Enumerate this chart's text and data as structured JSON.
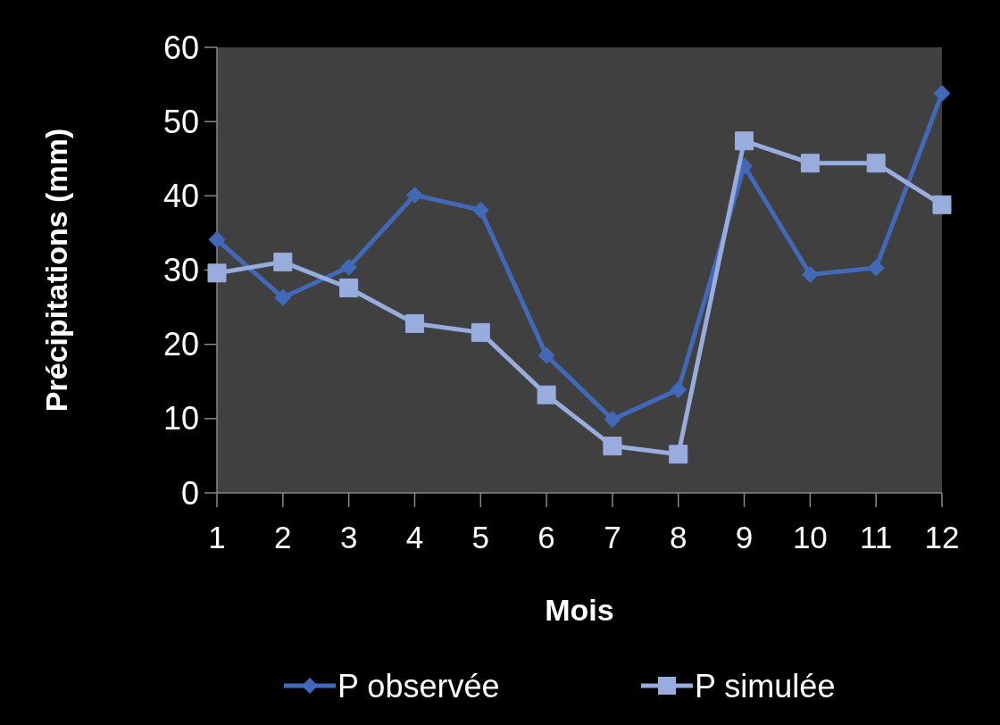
{
  "chart_data": {
    "type": "line",
    "xlabel": "Mois",
    "ylabel": "Précipitations (mm)",
    "x": [
      1,
      2,
      3,
      4,
      5,
      6,
      7,
      8,
      9,
      10,
      11,
      12
    ],
    "xlim": [
      1,
      12
    ],
    "xticks": [
      1,
      2,
      3,
      4,
      5,
      6,
      7,
      8,
      9,
      10,
      11,
      12
    ],
    "series": [
      {
        "name": "P observée",
        "color": "#4169b8",
        "marker": "diamond",
        "values": [
          34.1,
          26.3,
          30.4,
          40.1,
          38.1,
          18.5,
          9.9,
          13.9,
          44.0,
          29.4,
          30.3,
          53.8
        ]
      },
      {
        "name": "P simulée",
        "color": "#98acde",
        "marker": "square",
        "values": [
          29.6,
          31.1,
          27.6,
          22.8,
          21.6,
          13.2,
          6.3,
          5.2,
          47.4,
          44.4,
          44.4,
          38.8
        ]
      }
    ],
    "ylim": [
      0,
      60
    ],
    "yticks": [
      0,
      10,
      20,
      30,
      40,
      50,
      60
    ],
    "grid": false,
    "legend": "bottom",
    "line_style": "solid"
  }
}
